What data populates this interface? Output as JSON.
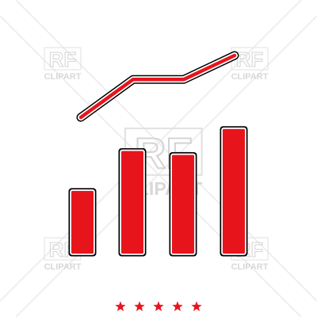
{
  "icon": {
    "name": "bar-chart-growth-icon",
    "fill_color": "#e8141c",
    "outline_color": "#000000",
    "halo_color": "#ffffff",
    "bars": [
      0.33,
      0.53,
      0.51,
      0.64
    ],
    "trend": [
      0.69,
      0.88,
      0.88,
      1.0
    ]
  },
  "watermark": {
    "logo_text": "RF",
    "logo_subtext": "CLIPART",
    "color": "#cfcfcf"
  },
  "rating": {
    "stars": 5,
    "max_stars": 5,
    "color": "#e8141c"
  }
}
